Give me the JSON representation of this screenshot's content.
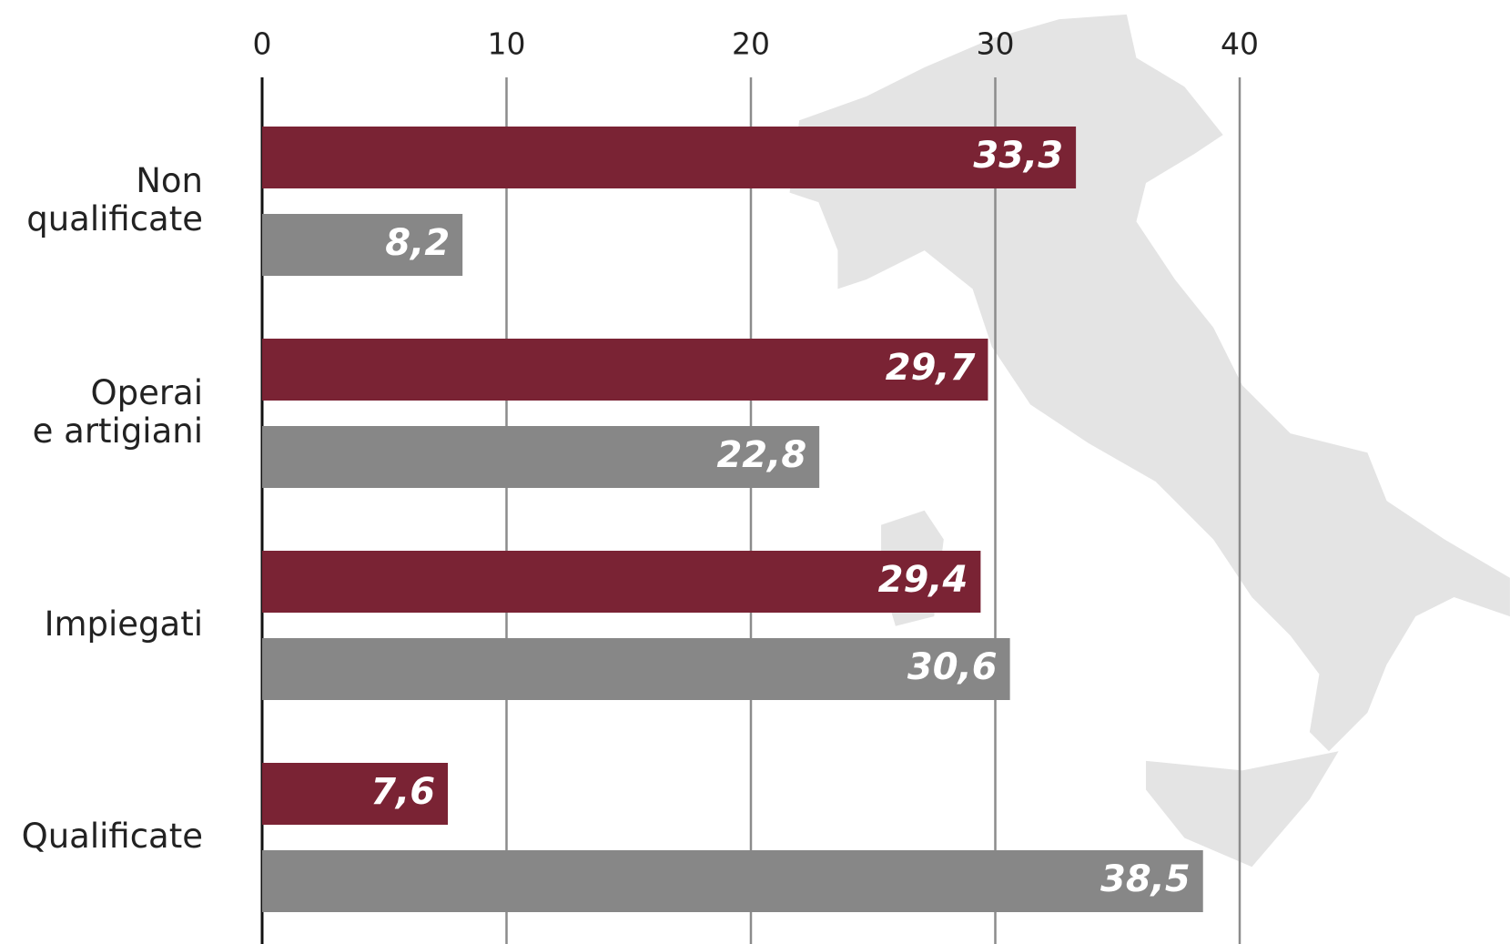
{
  "chart_data": {
    "type": "bar",
    "orientation": "horizontal",
    "categories": [
      "Non\nqualificate",
      "Operai\ne artigiani",
      "Impiegati",
      "Qualificate"
    ],
    "series": [
      {
        "color": "#7a2334",
        "values": [
          33.3,
          29.7,
          29.4,
          7.6
        ],
        "value_labels": [
          "33,3",
          "29,7",
          "29,4",
          "7,6"
        ]
      },
      {
        "color": "#878787",
        "values": [
          8.2,
          22.8,
          30.6,
          38.5
        ],
        "value_labels": [
          "8,2",
          "22,8",
          "30,6",
          "38,5"
        ]
      }
    ],
    "xlim": [
      0,
      40
    ],
    "xticks": [
      0,
      10,
      20,
      30,
      40
    ],
    "grid": true
  }
}
